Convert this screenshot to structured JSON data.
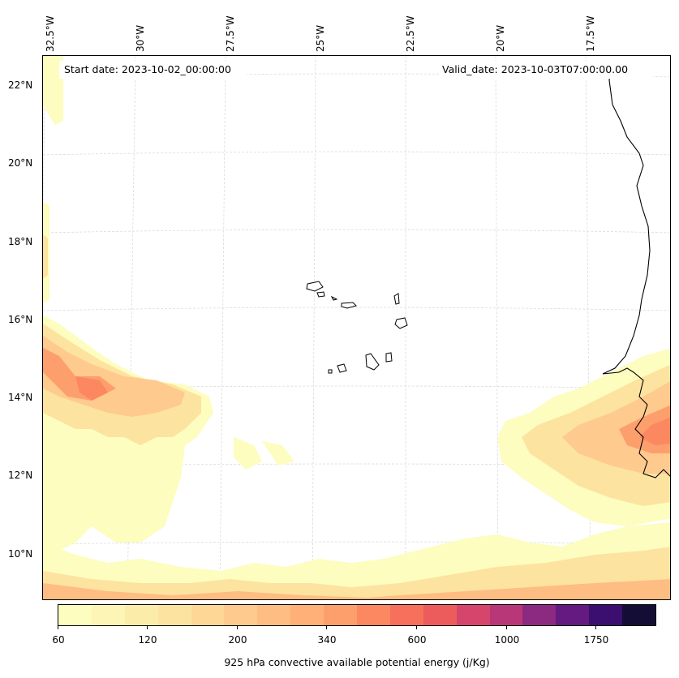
{
  "map": {
    "start_date": "Start date: 2023-10-02_00:00:00",
    "valid_date": "Valid_date: 2023-10-03T07:00:00.00",
    "lon_labels": [
      "32.5°W",
      "30°W",
      "27.5°W",
      "25°W",
      "22.5°W",
      "20°W",
      "17.5°W"
    ],
    "lat_labels": [
      "22°N",
      "20°N",
      "18°N",
      "16°N",
      "14°N",
      "12°N",
      "10°N"
    ]
  },
  "colorbar": {
    "title": "925 hPa convective available potential energy (j/Kg)",
    "tick_labels": [
      "60",
      "120",
      "200",
      "340",
      "600",
      "1000",
      "1750"
    ],
    "colors": [
      "#fcfdbf",
      "#fdf5b5",
      "#fcecaa",
      "#fde3a0",
      "#fed797",
      "#feca8d",
      "#febd83",
      "#feb078",
      "#fd9f6c",
      "#fb8861",
      "#f7705c",
      "#ec5c5c",
      "#d6456c",
      "#b73779",
      "#8c2981",
      "#641a80",
      "#3b0f70",
      "#140e36"
    ]
  }
}
